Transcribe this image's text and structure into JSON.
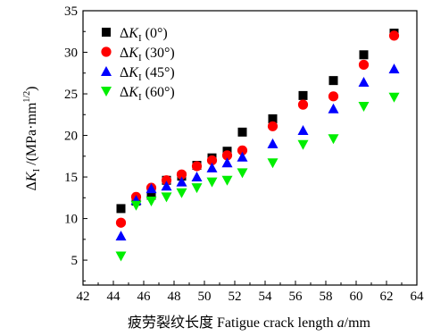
{
  "chart_data": {
    "type": "scatter",
    "xlabel": {
      "prefix": "疲劳裂纹长度 Fatigue crack length ",
      "var": "a",
      "unit": "/mm"
    },
    "ylabel": {
      "delta": "Δ",
      "var": "K",
      "sub": "I",
      "unit": " /(MPa·mm",
      "exp": "1/2",
      "close": ")"
    },
    "xlim": [
      42,
      64
    ],
    "ylim": [
      2,
      35
    ],
    "xticks": [
      42,
      44,
      46,
      48,
      50,
      52,
      54,
      56,
      58,
      60,
      62,
      64
    ],
    "yticks": [
      5,
      10,
      15,
      20,
      25,
      30,
      35
    ],
    "grid": false,
    "legend_position": "top-left",
    "series": [
      {
        "name": "ΔK_I (0°)",
        "legend": {
          "delta": "Δ",
          "var": "K",
          "sub": "I",
          "angle": " (0°)"
        },
        "marker": "square",
        "color": "#000000",
        "x": [
          44.5,
          45.5,
          46.5,
          47.5,
          48.5,
          49.5,
          50.5,
          51.5,
          52.5,
          54.5,
          56.5,
          58.5,
          60.5,
          62.5
        ],
        "y": [
          11.2,
          12.1,
          12.8,
          14.6,
          15.1,
          16.4,
          17.3,
          18.1,
          20.4,
          22.0,
          24.8,
          26.6,
          29.7,
          32.3
        ]
      },
      {
        "name": "ΔK_I (30°)",
        "legend": {
          "delta": "Δ",
          "var": "K",
          "sub": "I",
          "angle": " (30°)"
        },
        "marker": "circle",
        "color": "#ff0000",
        "x": [
          44.5,
          45.5,
          46.5,
          47.5,
          48.5,
          49.5,
          50.5,
          51.5,
          52.5,
          54.5,
          56.5,
          58.5,
          60.5,
          62.5
        ],
        "y": [
          9.5,
          12.6,
          13.7,
          14.6,
          15.3,
          16.3,
          17.0,
          17.6,
          18.2,
          21.1,
          23.7,
          24.7,
          28.5,
          32.0
        ]
      },
      {
        "name": "ΔK_I (45°)",
        "legend": {
          "delta": "Δ",
          "var": "K",
          "sub": "I",
          "angle": " (45°)"
        },
        "marker": "triangle-up",
        "color": "#0000ff",
        "x": [
          44.5,
          45.5,
          46.5,
          47.5,
          48.5,
          49.5,
          50.5,
          51.5,
          52.5,
          54.5,
          56.5,
          58.5,
          60.5,
          62.5
        ],
        "y": [
          7.9,
          12.2,
          13.6,
          13.9,
          14.4,
          15.0,
          16.1,
          16.7,
          17.4,
          19.0,
          20.6,
          23.2,
          26.4,
          28.0
        ]
      },
      {
        "name": "ΔK_I (60°)",
        "legend": {
          "delta": "Δ",
          "var": "K",
          "sub": "I",
          "angle": " (60°)"
        },
        "marker": "triangle-down",
        "color": "#00ee00",
        "x": [
          44.5,
          45.5,
          46.5,
          47.5,
          48.5,
          49.5,
          50.5,
          51.5,
          52.5,
          54.5,
          56.5,
          58.5,
          60.5,
          62.5
        ],
        "y": [
          5.5,
          11.6,
          12.1,
          12.6,
          13.1,
          13.7,
          14.4,
          14.6,
          15.5,
          16.7,
          18.9,
          19.6,
          23.5,
          24.6
        ]
      }
    ]
  }
}
